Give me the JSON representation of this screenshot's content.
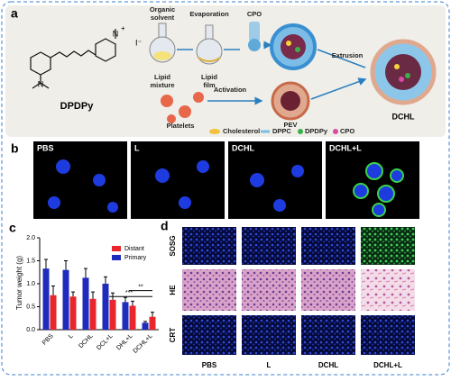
{
  "panel_labels": [
    "a",
    "b",
    "c",
    "d"
  ],
  "panel_a": {
    "compound": "DPDPy",
    "atoms": {
      "amine": "N",
      "pyridinium": "N",
      "charge": "+",
      "counterion": "I⁻"
    },
    "organic_solvent": [
      "Organic",
      "solvent"
    ],
    "evaporation": "Evaporation",
    "cpo": "CPO",
    "lipid_mixture": [
      "Lipid",
      "mixture"
    ],
    "lipid_film": [
      "Lipid",
      "film"
    ],
    "activation": "Activation",
    "platelets": "Platelets",
    "pev": "PEV",
    "extrusion": "Extrusion",
    "product": "DCHL",
    "legend": [
      "Cholesterol",
      "DPPC",
      "DPDPy",
      "CPO"
    ]
  },
  "panel_b": {
    "images": [
      "PBS",
      "L",
      "DCHL",
      "DCHL+L"
    ]
  },
  "panel_d": {
    "rows": [
      "SOSG",
      "HE",
      "CRT"
    ],
    "columns": [
      "PBS",
      "L",
      "DCHL",
      "DCHL+L"
    ]
  },
  "chart_data": {
    "type": "bar",
    "y_label": "Tumor weight (g)",
    "categories": [
      "PBS",
      "L",
      "DCHL",
      "DCL+L",
      "DHL+L",
      "DCHL+L"
    ],
    "series": [
      {
        "name": "Distant",
        "color": "#e8262b",
        "values": [
          0.75,
          0.72,
          0.67,
          0.65,
          0.52,
          0.28
        ],
        "errors": [
          0.2,
          0.1,
          0.15,
          0.15,
          0.1,
          0.1
        ]
      },
      {
        "name": "Primary",
        "color": "#1f2bbd",
        "values": [
          1.33,
          1.3,
          1.13,
          1.0,
          0.6,
          0.15
        ],
        "errors": [
          0.2,
          0.2,
          0.2,
          0.15,
          0.1,
          0.03
        ]
      }
    ],
    "ylim": [
      0,
      2
    ],
    "yticks": [
      {
        "value": 0,
        "label": "0.0"
      },
      0.5,
      {
        "value": 1,
        "label": "1.0"
      },
      1.5,
      {
        "value": 2,
        "label": "2.0"
      }
    ],
    "annotations": [
      "**",
      "***"
    ],
    "legend_position": "upper right"
  }
}
